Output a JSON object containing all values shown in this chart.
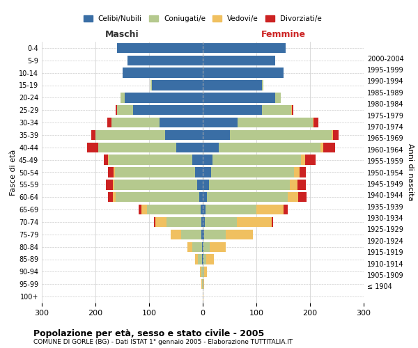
{
  "age_groups": [
    "100+",
    "95-99",
    "90-94",
    "85-89",
    "80-84",
    "75-79",
    "70-74",
    "65-69",
    "60-64",
    "55-59",
    "50-54",
    "45-49",
    "40-44",
    "35-39",
    "30-34",
    "25-29",
    "20-24",
    "15-19",
    "10-14",
    "5-9",
    "0-4"
  ],
  "birth_years": [
    "≤ 1904",
    "1905-1909",
    "1910-1914",
    "1915-1919",
    "1920-1924",
    "1925-1929",
    "1930-1934",
    "1935-1939",
    "1940-1944",
    "1945-1949",
    "1950-1954",
    "1955-1959",
    "1960-1964",
    "1965-1969",
    "1970-1974",
    "1975-1979",
    "1980-1984",
    "1985-1989",
    "1990-1994",
    "1995-1999",
    "2000-2004"
  ],
  "maschi": {
    "celibi": [
      0,
      0,
      0,
      1,
      1,
      2,
      3,
      4,
      7,
      10,
      14,
      20,
      50,
      70,
      80,
      130,
      145,
      95,
      150,
      140,
      160
    ],
    "coniugati": [
      0,
      1,
      3,
      8,
      18,
      38,
      65,
      100,
      155,
      155,
      150,
      155,
      145,
      130,
      90,
      30,
      8,
      2,
      0,
      0,
      0
    ],
    "vedovi": [
      0,
      1,
      2,
      5,
      10,
      20,
      20,
      10,
      5,
      3,
      2,
      1,
      0,
      0,
      0,
      0,
      0,
      0,
      0,
      0,
      0
    ],
    "divorziati": [
      0,
      0,
      0,
      0,
      0,
      0,
      3,
      5,
      10,
      12,
      10,
      8,
      20,
      8,
      8,
      2,
      0,
      0,
      0,
      0,
      0
    ]
  },
  "femmine": {
    "nubili": [
      0,
      0,
      0,
      1,
      1,
      3,
      4,
      5,
      8,
      12,
      15,
      18,
      30,
      50,
      65,
      110,
      135,
      110,
      150,
      135,
      155
    ],
    "coniugate": [
      0,
      1,
      3,
      5,
      12,
      40,
      60,
      95,
      150,
      150,
      155,
      165,
      190,
      190,
      140,
      55,
      10,
      3,
      0,
      0,
      0
    ],
    "vedove": [
      1,
      2,
      5,
      15,
      30,
      50,
      65,
      50,
      20,
      15,
      10,
      8,
      5,
      3,
      2,
      1,
      0,
      0,
      0,
      0,
      0
    ],
    "divorziate": [
      0,
      0,
      0,
      0,
      0,
      0,
      2,
      8,
      15,
      15,
      12,
      20,
      22,
      10,
      8,
      3,
      0,
      0,
      0,
      0,
      0
    ]
  },
  "colors": {
    "celibi": "#3a6ea5",
    "coniugati": "#b5c98e",
    "vedovi": "#f0c060",
    "divorziati": "#cc2222"
  },
  "title": "Popolazione per età, sesso e stato civile - 2005",
  "subtitle": "COMUNE DI GORLE (BG) - Dati ISTAT 1° gennaio 2005 - Elaborazione TUTTITALIA.IT",
  "ylabel_left": "Fasce di età",
  "ylabel_right": "Anni di nascita",
  "xlabel_left": "Maschi",
  "xlabel_right": "Femmine",
  "xlim": 300,
  "background_color": "#ffffff",
  "grid_color": "#cccccc"
}
